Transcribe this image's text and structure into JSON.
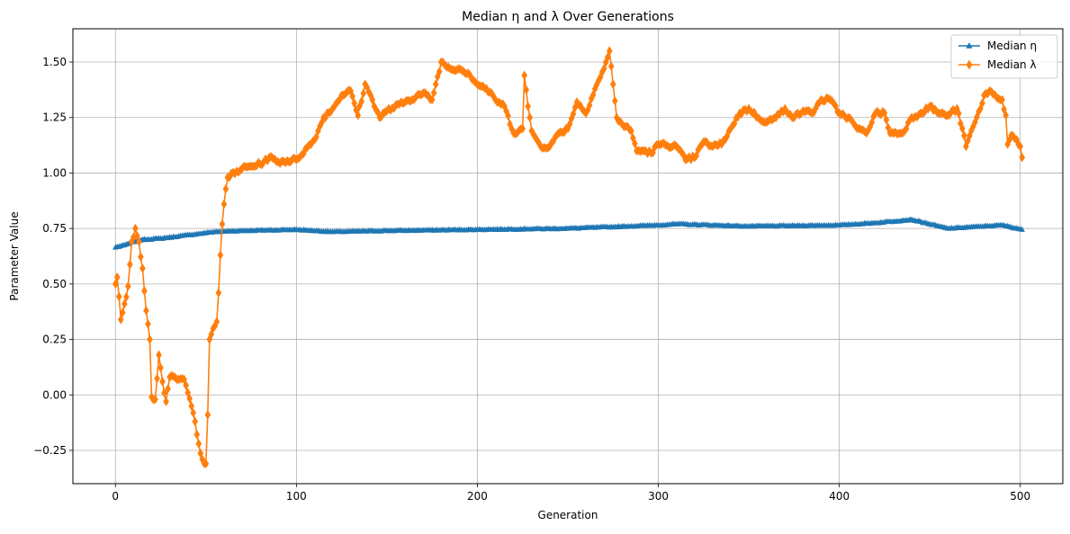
{
  "chart_data": {
    "type": "line",
    "title": "Median η and λ Over Generations",
    "xlabel": "Generation",
    "ylabel": "Parameter Value",
    "xlim": [
      -23.5,
      523.5
    ],
    "ylim": [
      -0.4,
      1.65
    ],
    "xticks": [
      0,
      100,
      200,
      300,
      400,
      500
    ],
    "xtick_labels": [
      "0",
      "100",
      "200",
      "300",
      "400",
      "500"
    ],
    "yticks": [
      -0.25,
      0,
      0.25,
      0.5,
      0.75,
      1.0,
      1.25,
      1.5
    ],
    "ytick_labels": [
      "−0.25",
      "0.00",
      "0.25",
      "0.50",
      "0.75",
      "1.00",
      "1.25",
      "1.50"
    ],
    "grid": true,
    "legend_position": "top-right",
    "series": [
      {
        "name": "Median η",
        "color": "#1f77b4",
        "marker": "triangle",
        "keypoints": [
          [
            0,
            0.665
          ],
          [
            5,
            0.675
          ],
          [
            10,
            0.69
          ],
          [
            15,
            0.7
          ],
          [
            25,
            0.705
          ],
          [
            35,
            0.715
          ],
          [
            45,
            0.725
          ],
          [
            55,
            0.735
          ],
          [
            70,
            0.74
          ],
          [
            100,
            0.745
          ],
          [
            120,
            0.735
          ],
          [
            150,
            0.74
          ],
          [
            200,
            0.745
          ],
          [
            250,
            0.75
          ],
          [
            300,
            0.765
          ],
          [
            310,
            0.77
          ],
          [
            350,
            0.76
          ],
          [
            400,
            0.765
          ],
          [
            420,
            0.775
          ],
          [
            440,
            0.79
          ],
          [
            450,
            0.77
          ],
          [
            460,
            0.75
          ],
          [
            480,
            0.76
          ],
          [
            490,
            0.765
          ],
          [
            501,
            0.745
          ]
        ]
      },
      {
        "name": "Median λ",
        "color": "#ff7f0e",
        "marker": "diamond",
        "keypoints": [
          [
            0,
            0.5
          ],
          [
            1,
            0.53
          ],
          [
            3,
            0.34
          ],
          [
            5,
            0.41
          ],
          [
            7,
            0.49
          ],
          [
            9,
            0.69
          ],
          [
            11,
            0.75
          ],
          [
            13,
            0.69
          ],
          [
            15,
            0.57
          ],
          [
            17,
            0.38
          ],
          [
            19,
            0.25
          ],
          [
            20,
            -0.01
          ],
          [
            22,
            -0.02
          ],
          [
            24,
            0.18
          ],
          [
            26,
            0.06
          ],
          [
            28,
            -0.03
          ],
          [
            30,
            0.08
          ],
          [
            35,
            0.07
          ],
          [
            38,
            0.07
          ],
          [
            40,
            0.01
          ],
          [
            42,
            -0.05
          ],
          [
            44,
            -0.12
          ],
          [
            46,
            -0.22
          ],
          [
            48,
            -0.29
          ],
          [
            50,
            -0.31
          ],
          [
            51,
            -0.09
          ],
          [
            52,
            0.25
          ],
          [
            54,
            0.3
          ],
          [
            56,
            0.33
          ],
          [
            57,
            0.46
          ],
          [
            58,
            0.63
          ],
          [
            59,
            0.77
          ],
          [
            60,
            0.86
          ],
          [
            62,
            0.98
          ],
          [
            70,
            1.02
          ],
          [
            80,
            1.04
          ],
          [
            85,
            1.07
          ],
          [
            90,
            1.05
          ],
          [
            100,
            1.06
          ],
          [
            110,
            1.15
          ],
          [
            115,
            1.25
          ],
          [
            120,
            1.29
          ],
          [
            125,
            1.35
          ],
          [
            130,
            1.37
          ],
          [
            134,
            1.26
          ],
          [
            138,
            1.4
          ],
          [
            142,
            1.33
          ],
          [
            146,
            1.25
          ],
          [
            150,
            1.28
          ],
          [
            160,
            1.32
          ],
          [
            170,
            1.36
          ],
          [
            175,
            1.33
          ],
          [
            180,
            1.5
          ],
          [
            185,
            1.47
          ],
          [
            190,
            1.47
          ],
          [
            195,
            1.45
          ],
          [
            200,
            1.4
          ],
          [
            205,
            1.38
          ],
          [
            210,
            1.33
          ],
          [
            215,
            1.3
          ],
          [
            220,
            1.18
          ],
          [
            225,
            1.2
          ],
          [
            226,
            1.44
          ],
          [
            228,
            1.3
          ],
          [
            230,
            1.19
          ],
          [
            235,
            1.12
          ],
          [
            240,
            1.12
          ],
          [
            245,
            1.18
          ],
          [
            250,
            1.2
          ],
          [
            255,
            1.32
          ],
          [
            260,
            1.27
          ],
          [
            265,
            1.38
          ],
          [
            270,
            1.47
          ],
          [
            273,
            1.55
          ],
          [
            275,
            1.4
          ],
          [
            277,
            1.25
          ],
          [
            280,
            1.22
          ],
          [
            285,
            1.19
          ],
          [
            288,
            1.1
          ],
          [
            292,
            1.1
          ],
          [
            296,
            1.09
          ],
          [
            300,
            1.13
          ],
          [
            310,
            1.12
          ],
          [
            315,
            1.06
          ],
          [
            320,
            1.07
          ],
          [
            325,
            1.14
          ],
          [
            330,
            1.12
          ],
          [
            335,
            1.13
          ],
          [
            340,
            1.2
          ],
          [
            345,
            1.27
          ],
          [
            350,
            1.29
          ],
          [
            355,
            1.25
          ],
          [
            360,
            1.23
          ],
          [
            365,
            1.25
          ],
          [
            370,
            1.29
          ],
          [
            375,
            1.25
          ],
          [
            380,
            1.28
          ],
          [
            385,
            1.27
          ],
          [
            390,
            1.33
          ],
          [
            395,
            1.33
          ],
          [
            400,
            1.27
          ],
          [
            405,
            1.25
          ],
          [
            410,
            1.2
          ],
          [
            415,
            1.18
          ],
          [
            420,
            1.27
          ],
          [
            425,
            1.27
          ],
          [
            428,
            1.18
          ],
          [
            435,
            1.18
          ],
          [
            440,
            1.25
          ],
          [
            445,
            1.27
          ],
          [
            450,
            1.3
          ],
          [
            455,
            1.27
          ],
          [
            460,
            1.26
          ],
          [
            465,
            1.29
          ],
          [
            468,
            1.2
          ],
          [
            470,
            1.12
          ],
          [
            474,
            1.21
          ],
          [
            478,
            1.29
          ],
          [
            480,
            1.35
          ],
          [
            483,
            1.37
          ],
          [
            487,
            1.34
          ],
          [
            490,
            1.33
          ],
          [
            492,
            1.26
          ],
          [
            493,
            1.13
          ],
          [
            495,
            1.17
          ],
          [
            498,
            1.15
          ],
          [
            500,
            1.12
          ],
          [
            501,
            1.07
          ]
        ]
      }
    ]
  }
}
